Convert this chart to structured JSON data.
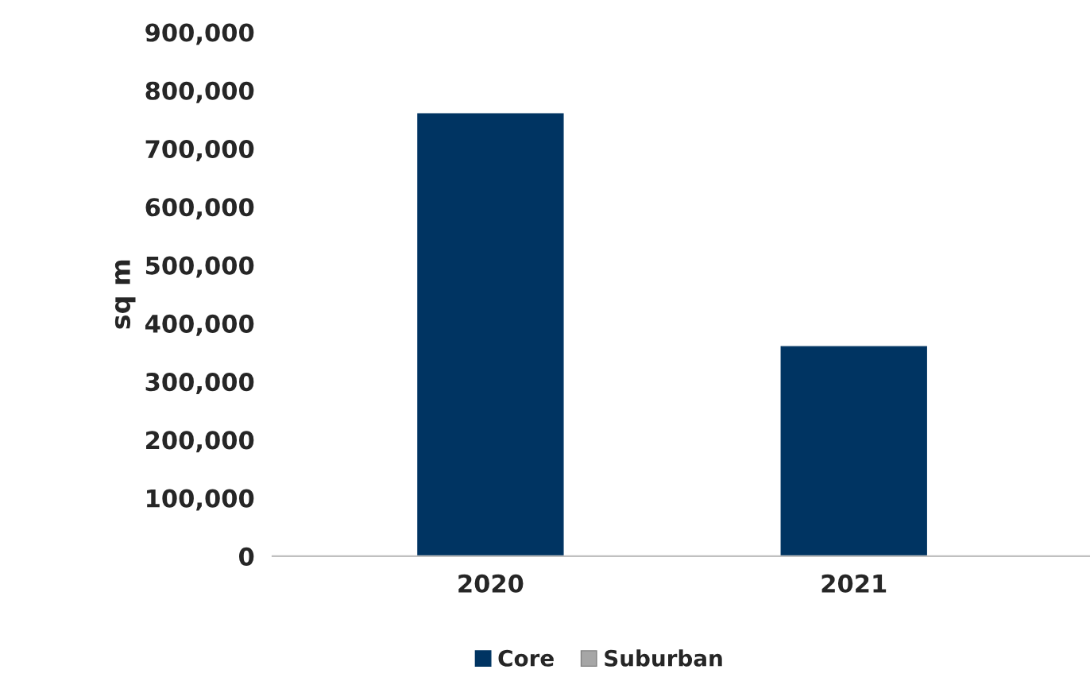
{
  "chart_data": {
    "type": "bar",
    "stacked": true,
    "ylabel": "sq m",
    "categories": [
      "2020",
      "2021"
    ],
    "series": [
      {
        "name": "Core",
        "color": "#003462",
        "values": [
          760000,
          360000
        ]
      },
      {
        "name": "Suburban",
        "color": "#a6a6a6",
        "values": [
          null,
          null
        ]
      }
    ],
    "ylim": [
      0,
      900000
    ],
    "yticks": [
      {
        "value": 0,
        "label": "0"
      },
      {
        "value": 100000,
        "label": "100,000"
      },
      {
        "value": 200000,
        "label": "200,000"
      },
      {
        "value": 300000,
        "label": "300,000"
      },
      {
        "value": 400000,
        "label": "400,000"
      },
      {
        "value": 500000,
        "label": "500,000"
      },
      {
        "value": 600000,
        "label": "600,000"
      },
      {
        "value": 700000,
        "label": "700,000"
      },
      {
        "value": 800000,
        "label": "800,000"
      },
      {
        "value": 900000,
        "label": "900,000"
      }
    ],
    "grid": false,
    "legend": "bottom"
  }
}
